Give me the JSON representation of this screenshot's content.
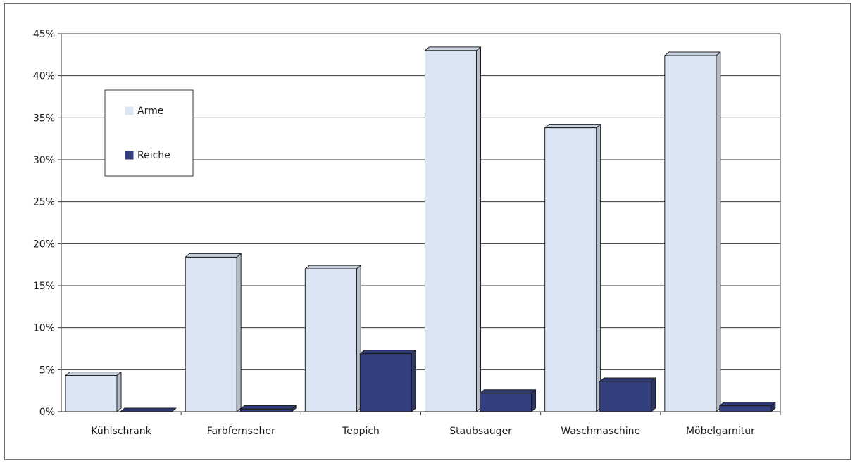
{
  "chart_data": {
    "type": "bar",
    "categories": [
      "Kühlschrank",
      "Farbfernseher",
      "Teppich",
      "Staubsauger",
      "Waschmaschine",
      "Möbelgarnitur"
    ],
    "series": [
      {
        "name": "Arme",
        "values": [
          4.3,
          18.4,
          17.0,
          43.0,
          33.8,
          42.4
        ],
        "color": "#dbe5f4"
      },
      {
        "name": "Reiche",
        "values": [
          0.0,
          0.3,
          6.9,
          2.2,
          3.6,
          0.7
        ],
        "color": "#333f7e"
      }
    ],
    "yticks": [
      "0%",
      "5%",
      "10%",
      "15%",
      "20%",
      "25%",
      "30%",
      "35%",
      "40%",
      "45%"
    ],
    "ylim": [
      0,
      45
    ],
    "y_unit": "%",
    "grid": true,
    "legend_position": "top-left",
    "three_d": true
  }
}
